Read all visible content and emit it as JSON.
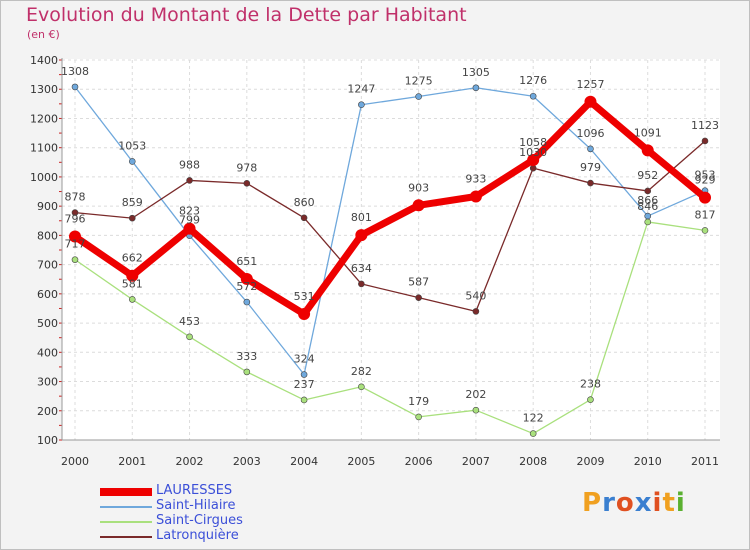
{
  "header": {
    "title": "Evolution du Montant de la Dette par Habitant",
    "subtitle": "(en €)"
  },
  "logo": {
    "text": "Proxiti"
  },
  "colors": {
    "LAURESSES": "#ee0000",
    "Saint-Hilaire": "#6fa8dc",
    "Saint-Cirgues": "#a9e07d",
    "Latronquière": "#7a2a2a",
    "title": "#c0306a",
    "legend_text": "#3b4fd8"
  },
  "chart_data": {
    "type": "line",
    "title": "Evolution du Montant de la Dette par Habitant",
    "subtitle": "(en €)",
    "xlabel": "",
    "ylabel": "",
    "x": [
      "2000",
      "2001",
      "2002",
      "2003",
      "2004",
      "2005",
      "2006",
      "2007",
      "2008",
      "2009",
      "2010",
      "2011"
    ],
    "ylim": [
      100,
      1400
    ],
    "yticks": [
      100,
      200,
      300,
      400,
      500,
      600,
      700,
      800,
      900,
      1000,
      1100,
      1200,
      1300,
      1400
    ],
    "grid": true,
    "legend_position": "bottom-left",
    "series": [
      {
        "name": "LAURESSES",
        "values": [
          796,
          662,
          823,
          651,
          531,
          801,
          903,
          933,
          1058,
          1257,
          1091,
          929
        ],
        "labels": [
          "796",
          "662",
          "823",
          "651",
          "531",
          "801",
          "903",
          "933",
          "1058",
          "1257",
          "1091",
          "929"
        ]
      },
      {
        "name": "Saint-Hilaire",
        "values": [
          1308,
          1053,
          799,
          572,
          324,
          1247,
          1275,
          1305,
          1276,
          1096,
          866,
          953
        ],
        "labels": [
          "1308",
          "1053",
          "799",
          "572",
          "324",
          "1247",
          "1275",
          "1305",
          "1276",
          "1096",
          "866",
          "953"
        ]
      },
      {
        "name": "Saint-Cirgues",
        "values": [
          717,
          581,
          453,
          333,
          237,
          282,
          179,
          202,
          122,
          238,
          846,
          817
        ],
        "labels": [
          "717",
          "581",
          "453",
          "333",
          "237",
          "282",
          "179",
          "202",
          "122",
          "238",
          "846",
          "817"
        ]
      },
      {
        "name": "Latronquière",
        "values": [
          878,
          859,
          988,
          978,
          860,
          634,
          587,
          540,
          1030,
          979,
          952,
          1123
        ],
        "labels": [
          "878",
          "859",
          "988",
          "978",
          "860",
          "634",
          "587",
          "540",
          "1030",
          "979",
          "952",
          "1123"
        ]
      }
    ]
  }
}
